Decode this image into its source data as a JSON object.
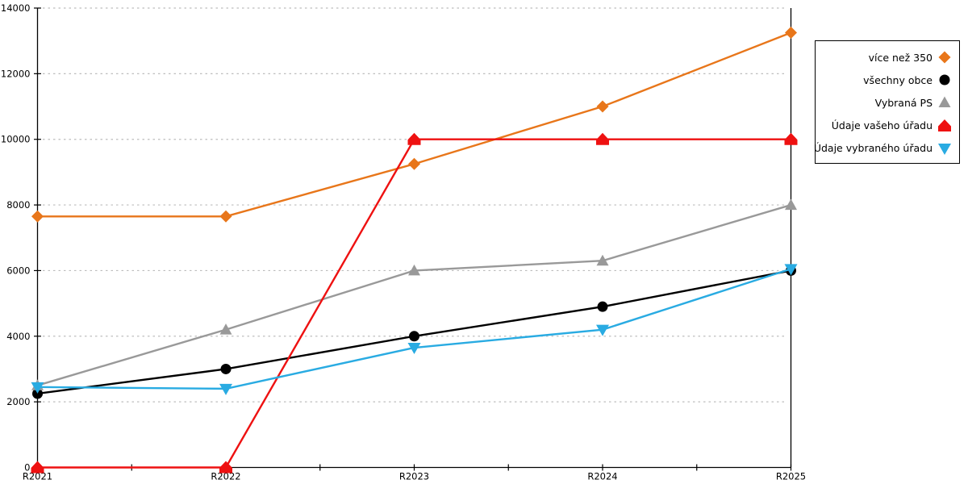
{
  "chart_data": {
    "type": "line",
    "title": "",
    "xlabel": "",
    "ylabel": "",
    "categories": [
      "R2021",
      "R2022",
      "R2023",
      "R2024",
      "R2025"
    ],
    "series": [
      {
        "name": "více než 350",
        "color": "#E8761A",
        "marker": "diamond",
        "values": [
          7650,
          7650,
          9250,
          11000,
          13250
        ]
      },
      {
        "name": "všechny obce",
        "color": "#000000",
        "marker": "circle",
        "values": [
          2250,
          3000,
          4000,
          4900,
          6000
        ]
      },
      {
        "name": "Vybraná PS",
        "color": "#999999",
        "marker": "triangle-up",
        "values": [
          2500,
          4200,
          6000,
          6300,
          8000
        ]
      },
      {
        "name": "Údaje vašeho úřadu",
        "color": "#EE1111",
        "marker": "pentagon",
        "values": [
          0,
          0,
          10000,
          10000,
          10000
        ]
      },
      {
        "name": "Údaje vybraného úřadu",
        "color": "#29ABE2",
        "marker": "triangle-down",
        "values": [
          2450,
          2400,
          3650,
          4200,
          6050
        ]
      }
    ],
    "ylim": [
      0,
      14000
    ],
    "ytick_step": 2000,
    "y_tick_labels": [
      "0",
      "2000",
      "4000",
      "6000",
      "8000",
      "10000",
      "12000",
      "14000"
    ],
    "x_tick_labels": [
      "R2021",
      "R2022",
      "R2023",
      "R2024",
      "R2025"
    ],
    "grid": "horizontal-dashed",
    "legend_position": "top-right",
    "colors": {
      "grid": "#BDBDBD",
      "axis": "#000000",
      "background": "#FFFFFF"
    }
  }
}
